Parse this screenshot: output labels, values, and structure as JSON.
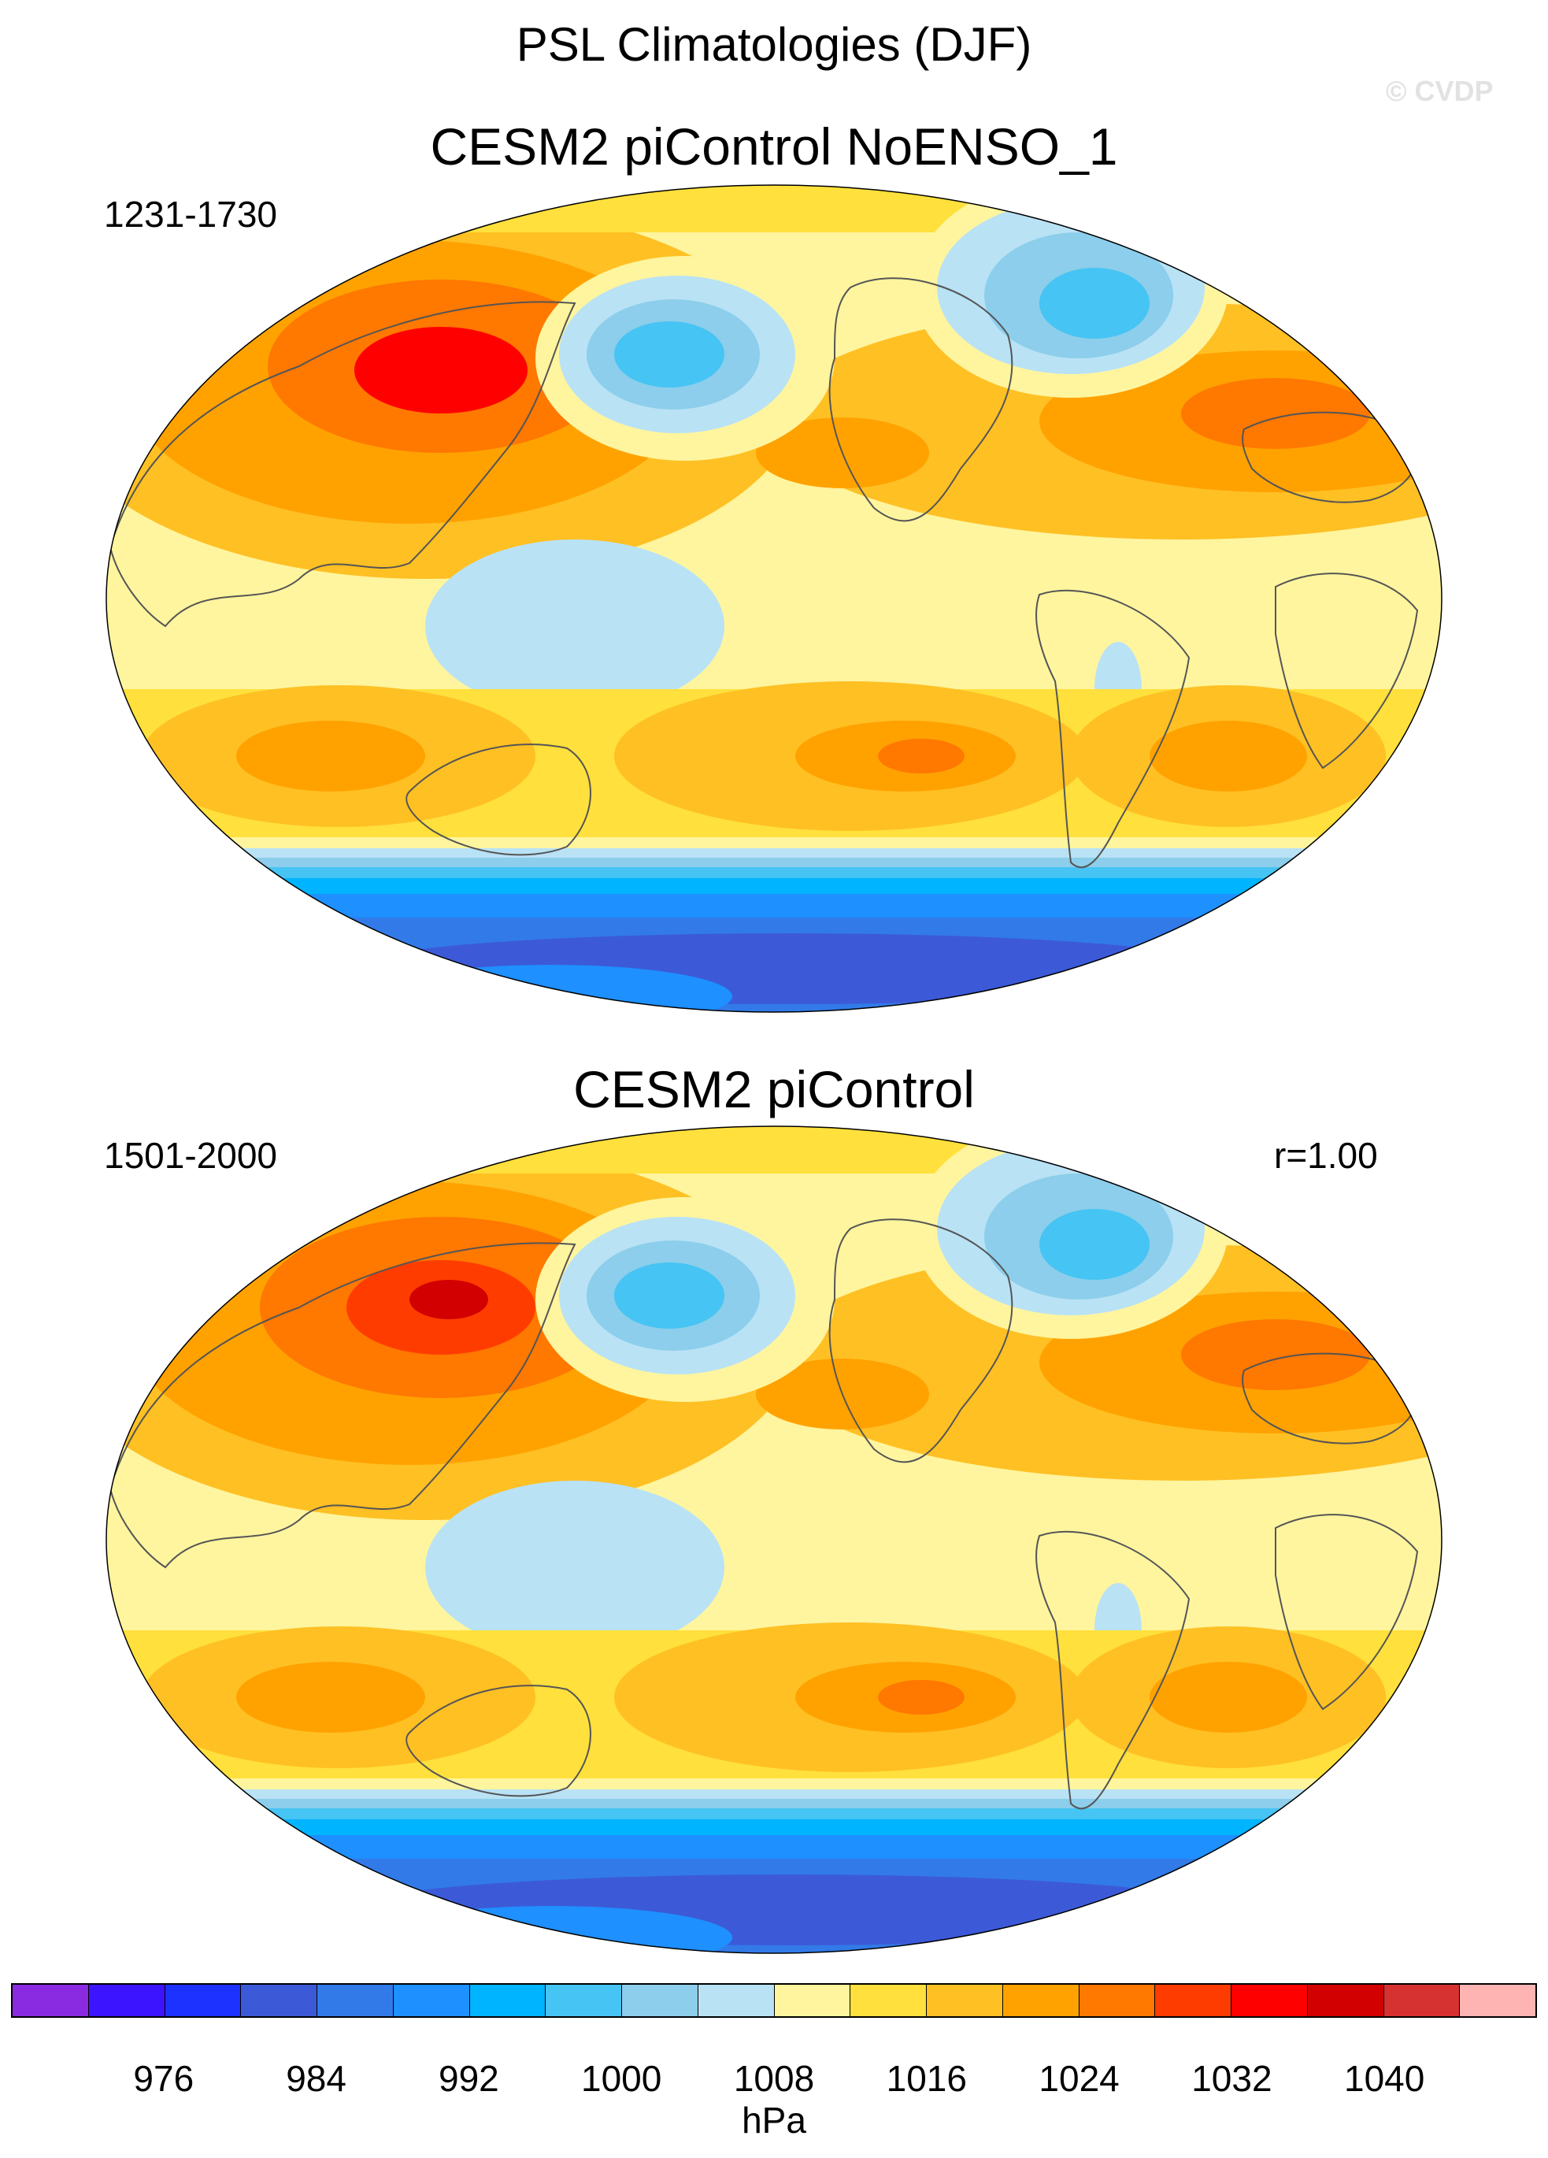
{
  "figure": {
    "title": "PSL Climatologies (DJF)",
    "watermark": "© CVDP"
  },
  "panels": [
    {
      "title": "CESM2 piControl NoENSO_1",
      "period": "1231-1730",
      "corr": ""
    },
    {
      "title": "CESM2 piControl",
      "period": "1501-2000",
      "corr": "r=1.00"
    }
  ],
  "colorbar": {
    "colors": [
      "#8a2be2",
      "#3c14ff",
      "#1e32ff",
      "#3c5ad8",
      "#327ae8",
      "#1e90ff",
      "#00b4ff",
      "#46c4f4",
      "#8cceeb",
      "#b9e2f5",
      "#fff59f",
      "#ffe03c",
      "#ffc024",
      "#ffa200",
      "#ff7800",
      "#ff3c00",
      "#ff0000",
      "#d20000",
      "#d73232",
      "#ffb4b4"
    ],
    "tick_labels": [
      "976",
      "984",
      "992",
      "1000",
      "1008",
      "1016",
      "1024",
      "1032",
      "1040"
    ],
    "units": "hPa"
  },
  "map_style": {
    "projection": "Robinson-like ellipse, Pacific-centered",
    "coastline_color": "#555555",
    "palette_index": {
      "neg_deep": 3,
      "neg_mid": 5,
      "neg_light": 8,
      "neg_pale": 9,
      "pale_yellow": 10,
      "yellow": 11,
      "gold": 12,
      "orange": 13,
      "dark_orange": 14,
      "red_orange": 15,
      "red": 16
    }
  }
}
